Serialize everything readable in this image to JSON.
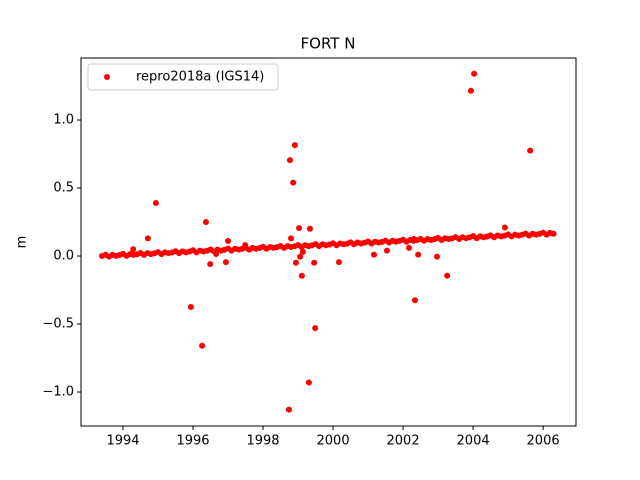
{
  "chart_data": {
    "type": "scatter",
    "title": "FORT N",
    "ylabel": "m",
    "legend": "upper left",
    "xlim": [
      1992.8,
      2006.94
    ],
    "ylim": [
      -1.25,
      1.456
    ],
    "xticks": [
      1994,
      1996,
      1998,
      2000,
      2002,
      2004,
      2006
    ],
    "yticks": [
      {
        "value": -1,
        "label": "−1.0"
      },
      {
        "value": -0.5,
        "label": "−0.5"
      },
      {
        "value": 0,
        "label": "0.0"
      },
      {
        "value": 0.5,
        "label": "0.5"
      },
      {
        "value": 1,
        "label": "1.0"
      }
    ],
    "series": [
      {
        "name": "repro2018a (IGS14)",
        "color": "#ff0000",
        "x": [
          1993.4,
          1993.5,
          1993.6,
          1993.7,
          1993.8,
          1993.9,
          1994.0,
          1994.1,
          1994.2,
          1994.3,
          1994.4,
          1994.5,
          1994.6,
          1994.7,
          1994.8,
          1994.9,
          1995.0,
          1995.1,
          1995.2,
          1995.3,
          1995.4,
          1995.5,
          1995.6,
          1995.7,
          1995.8,
          1995.9,
          1996.0,
          1996.1,
          1996.2,
          1996.3,
          1996.4,
          1996.5,
          1996.6,
          1996.7,
          1996.8,
          1996.9,
          1997.0,
          1997.1,
          1997.2,
          1997.3,
          1997.4,
          1997.5,
          1997.6,
          1997.7,
          1997.8,
          1997.9,
          1998.0,
          1998.1,
          1998.2,
          1998.3,
          1998.4,
          1998.5,
          1998.6,
          1998.7,
          1998.8,
          1998.9,
          1999.0,
          1999.1,
          1999.2,
          1999.3,
          1999.4,
          1999.5,
          1999.6,
          1999.7,
          1999.8,
          1999.9,
          2000.0,
          2000.1,
          2000.2,
          2000.3,
          2000.4,
          2000.5,
          2000.6,
          2000.7,
          2000.8,
          2000.9,
          2001.0,
          2001.1,
          2001.2,
          2001.3,
          2001.4,
          2001.5,
          2001.6,
          2001.7,
          2001.8,
          2001.9,
          2002.0,
          2002.1,
          2002.2,
          2002.3,
          2002.4,
          2002.5,
          2002.6,
          2002.7,
          2002.8,
          2002.9,
          2003.0,
          2003.1,
          2003.2,
          2003.3,
          2003.4,
          2003.5,
          2003.6,
          2003.7,
          2003.8,
          2003.9,
          2004.0,
          2004.1,
          2004.2,
          2004.3,
          2004.4,
          2004.5,
          2004.6,
          2004.7,
          2004.8,
          2004.9,
          2005.0,
          2005.1,
          2005.2,
          2005.3,
          2005.4,
          2005.5,
          2005.6,
          2005.7,
          2005.8,
          2005.9,
          2006.0,
          2006.1,
          2006.2,
          2006.3,
          1994.71,
          1994.29,
          1994.94,
          1995.94,
          1996.26,
          1996.37,
          1996.49,
          1996.66,
          1996.94,
          1997.0,
          1997.49,
          1998.74,
          1998.77,
          1998.8,
          1998.86,
          1998.91,
          1998.94,
          1999.03,
          1999.06,
          1999.11,
          1999.14,
          1999.31,
          1999.34,
          1999.46,
          1999.49,
          2000.17,
          2001.17,
          2001.54,
          2002.17,
          2002.31,
          2002.34,
          2002.43,
          2002.97,
          2003.26,
          2003.94,
          2004.03,
          2004.91,
          2005.63
        ],
        "values": [
          0.0,
          0.009,
          -0.005,
          0.008,
          0.001,
          0.007,
          0.016,
          0.001,
          0.014,
          0.008,
          0.013,
          0.022,
          0.008,
          0.021,
          0.014,
          0.02,
          0.029,
          0.014,
          0.027,
          0.021,
          0.026,
          0.035,
          0.021,
          0.034,
          0.027,
          0.033,
          0.042,
          0.027,
          0.04,
          0.034,
          0.039,
          0.048,
          0.034,
          0.047,
          0.04,
          0.046,
          0.055,
          0.04,
          0.053,
          0.047,
          0.052,
          0.061,
          0.047,
          0.06,
          0.053,
          0.059,
          0.068,
          0.053,
          0.066,
          0.06,
          0.065,
          0.074,
          0.06,
          0.073,
          0.066,
          0.072,
          0.081,
          0.066,
          0.079,
          0.073,
          0.078,
          0.087,
          0.073,
          0.086,
          0.079,
          0.085,
          0.094,
          0.079,
          0.092,
          0.086,
          0.091,
          0.1,
          0.086,
          0.099,
          0.092,
          0.098,
          0.107,
          0.092,
          0.105,
          0.099,
          0.104,
          0.113,
          0.099,
          0.112,
          0.105,
          0.111,
          0.12,
          0.105,
          0.118,
          0.112,
          0.117,
          0.126,
          0.112,
          0.125,
          0.118,
          0.124,
          0.133,
          0.118,
          0.131,
          0.125,
          0.13,
          0.139,
          0.125,
          0.138,
          0.131,
          0.137,
          0.146,
          0.131,
          0.144,
          0.138,
          0.143,
          0.152,
          0.138,
          0.151,
          0.144,
          0.15,
          0.159,
          0.144,
          0.157,
          0.151,
          0.156,
          0.165,
          0.151,
          0.164,
          0.157,
          0.163,
          0.172,
          0.157,
          0.17,
          0.164,
          0.13,
          0.05,
          0.39,
          -0.375,
          -0.66,
          0.25,
          -0.06,
          0.015,
          -0.045,
          0.11,
          0.08,
          -1.13,
          0.705,
          0.13,
          0.54,
          0.815,
          -0.05,
          0.205,
          -0.005,
          -0.145,
          0.03,
          -0.93,
          0.2,
          -0.05,
          -0.53,
          -0.045,
          0.01,
          0.04,
          0.06,
          0.125,
          -0.325,
          0.01,
          -0.005,
          -0.145,
          1.215,
          1.34,
          0.21,
          0.775
        ]
      }
    ]
  }
}
